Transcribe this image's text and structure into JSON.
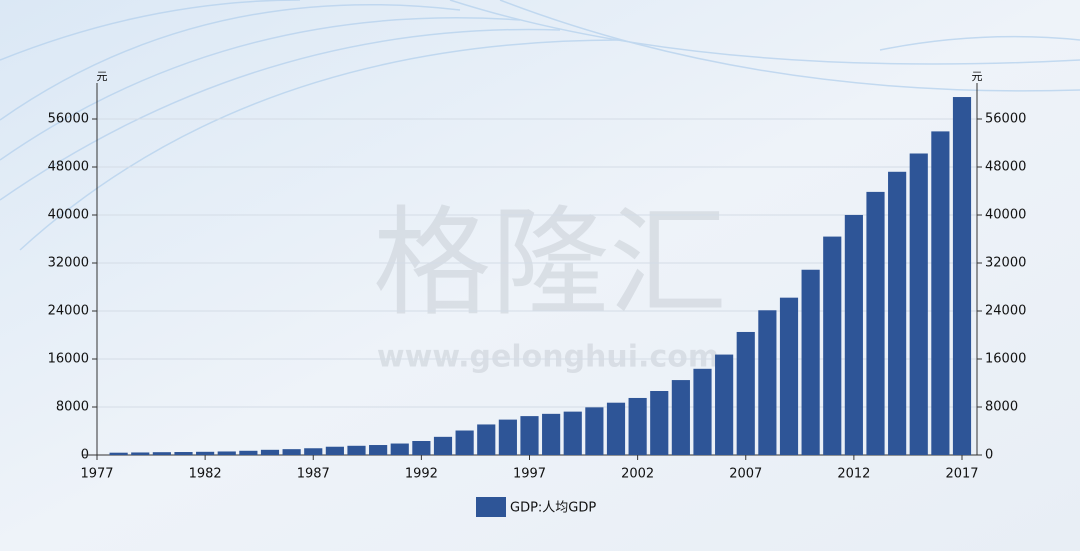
{
  "chart_data": {
    "type": "bar",
    "y_unit": "元",
    "y2_unit": "元",
    "x": [
      1978,
      1979,
      1980,
      1981,
      1982,
      1983,
      1984,
      1985,
      1986,
      1987,
      1988,
      1989,
      1990,
      1991,
      1992,
      1993,
      1994,
      1995,
      1996,
      1997,
      1998,
      1999,
      2000,
      2001,
      2002,
      2003,
      2004,
      2005,
      2006,
      2007,
      2008,
      2009,
      2010,
      2011,
      2012,
      2013,
      2014,
      2015,
      2016,
      2017
    ],
    "series": [
      {
        "name": "GDP:人均GDP",
        "color": "#2e5597",
        "values": [
          385,
          423,
          468,
          497,
          533,
          588,
          702,
          866,
          973,
          1123,
          1378,
          1536,
          1663,
          1912,
          2334,
          3027,
          4081,
          5091,
          5898,
          6481,
          6860,
          7229,
          7942,
          8717,
          9506,
          10666,
          12487,
          14368,
          16738,
          20505,
          24121,
          26222,
          30876,
          36403,
          40007,
          43852,
          47203,
          50251,
          53935,
          59660
        ]
      }
    ],
    "xlim": [
      1977,
      2017
    ],
    "xticks": [
      1977,
      1982,
      1987,
      1992,
      1997,
      2002,
      2007,
      2012,
      2017
    ],
    "ylim": [
      0,
      62000
    ],
    "yticks": [
      0,
      8000,
      16000,
      24000,
      32000,
      40000,
      48000,
      56000
    ],
    "y2lim": [
      0,
      62000
    ],
    "y2ticks": [
      0,
      8000,
      16000,
      24000,
      32000,
      40000,
      48000,
      56000
    ],
    "grid": true
  },
  "watermark": {
    "logo": "格隆汇",
    "url": "www.gelonghui.com"
  }
}
